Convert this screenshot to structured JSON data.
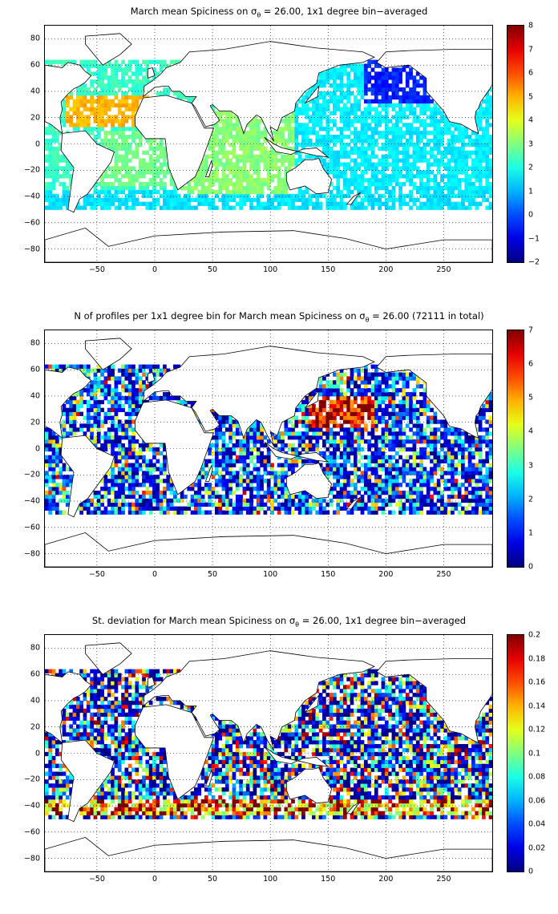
{
  "panels": [
    {
      "title_prefix": "March mean Spiciness on σ",
      "title_sub": "θ",
      "title_suffix": " = 26.00, 1x1 degree bin−averaged",
      "colorbar": {
        "min": -2,
        "max": 8,
        "ticks": [
          "8",
          "7",
          "6",
          "5",
          "4",
          "3",
          "2",
          "1",
          "0",
          "−1",
          "−2"
        ]
      },
      "field": "spice"
    },
    {
      "title_prefix": "N of profiles per 1x1 degree bin for March mean Spiciness on σ",
      "title_sub": "θ",
      "title_suffix": " = 26.00 (72111 in total)",
      "colorbar": {
        "min": 0,
        "max": 7,
        "ticks": [
          "7",
          "6",
          "5",
          "4",
          "3",
          "2",
          "1",
          "0"
        ]
      },
      "field": "count"
    },
    {
      "title_prefix": "St. deviation for March mean Spiciness on σ",
      "title_sub": "θ",
      "title_suffix": " = 26.00, 1x1 degree bin−averaged",
      "colorbar": {
        "min": 0,
        "max": 0.2,
        "ticks": [
          "0.2",
          "0.18",
          "0.16",
          "0.14",
          "0.12",
          "0.1",
          "0.08",
          "0.06",
          "0.04",
          "0.02",
          "0"
        ]
      },
      "field": "std"
    }
  ],
  "x_ticks": [
    "−50",
    "0",
    "50",
    "100",
    "150",
    "200",
    "250"
  ],
  "y_ticks": [
    "80",
    "60",
    "40",
    "20",
    "0",
    "−20",
    "−40",
    "−60",
    "−80"
  ],
  "axes": {
    "xlim": [
      -95,
      292
    ],
    "ylim": [
      -90,
      90
    ],
    "grid": "dotted"
  },
  "colormap": "jet"
}
